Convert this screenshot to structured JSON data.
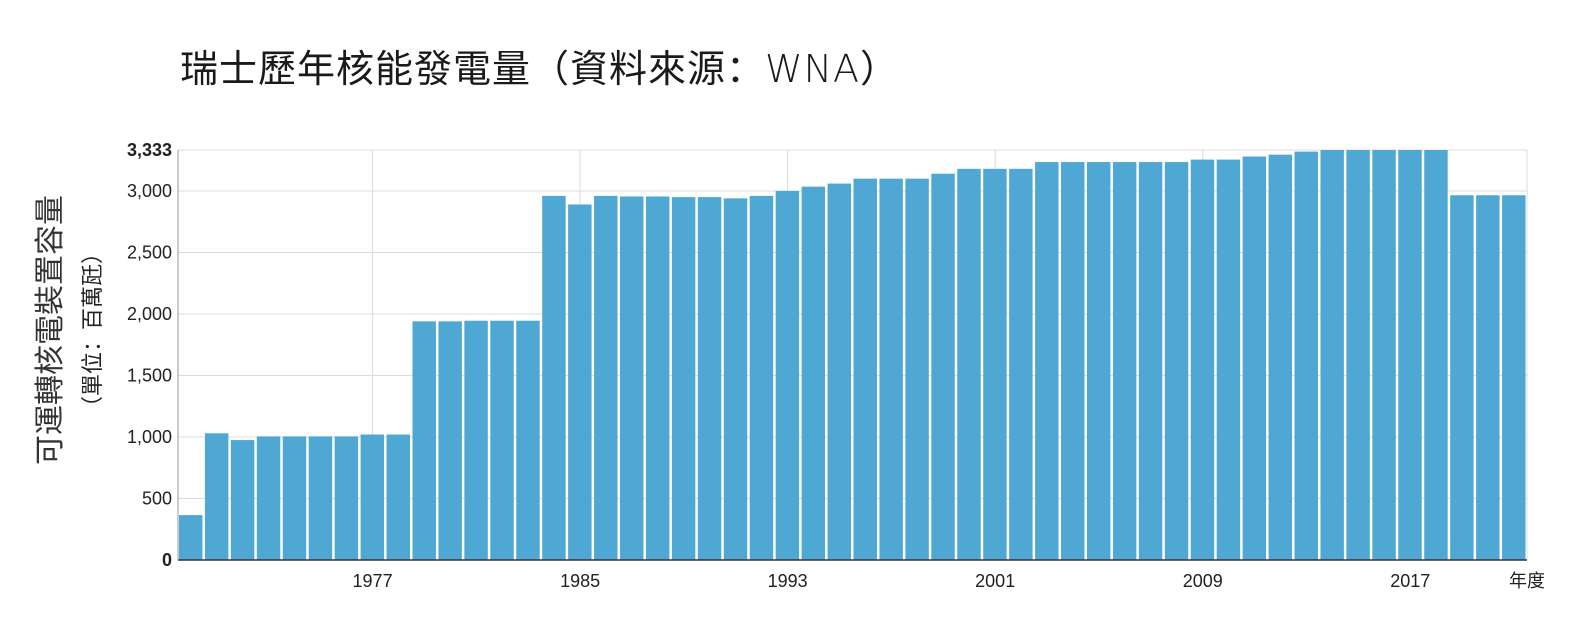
{
  "title": "瑞士歷年核能發電量（資料來源：WNA）",
  "chart_data": {
    "type": "bar",
    "title": "瑞士歷年核能發電量（資料來源：WNA）",
    "ylabel": "可運轉核電裝置容量",
    "yunit": "（單位：百萬瓩）",
    "xunit": "年度",
    "ylim": [
      0,
      3333
    ],
    "yticks": [
      0,
      500,
      1000,
      1500,
      2000,
      2500,
      3000,
      3333
    ],
    "ytick_labels": [
      "0",
      "500",
      "1,000",
      "1,500",
      "2,000",
      "2,500",
      "3,000",
      "3,333"
    ],
    "xtick_labels": [
      "1977",
      "1985",
      "1993",
      "2001",
      "2009",
      "2017"
    ],
    "categories": [
      1970,
      1971,
      1972,
      1973,
      1974,
      1975,
      1976,
      1977,
      1978,
      1979,
      1980,
      1981,
      1982,
      1983,
      1984,
      1985,
      1986,
      1987,
      1988,
      1989,
      1990,
      1991,
      1992,
      1993,
      1994,
      1995,
      1996,
      1997,
      1998,
      1999,
      2000,
      2001,
      2002,
      2003,
      2004,
      2005,
      2006,
      2007,
      2008,
      2009,
      2010,
      2011,
      2012,
      2013,
      2014,
      2015,
      2016,
      2017,
      2018,
      2019,
      2020,
      2021
    ],
    "values": [
      365,
      1030,
      975,
      1005,
      1005,
      1005,
      1005,
      1020,
      1020,
      1940,
      1940,
      1945,
      1945,
      1945,
      2960,
      2890,
      2960,
      2955,
      2955,
      2950,
      2950,
      2940,
      2960,
      3000,
      3035,
      3060,
      3100,
      3100,
      3100,
      3140,
      3180,
      3180,
      3180,
      3235,
      3235,
      3235,
      3235,
      3235,
      3235,
      3255,
      3255,
      3280,
      3295,
      3320,
      3333,
      3333,
      3333,
      3333,
      3333,
      2965,
      2965,
      2965
    ],
    "bar_color": "#4fa7d3",
    "grid": true
  }
}
